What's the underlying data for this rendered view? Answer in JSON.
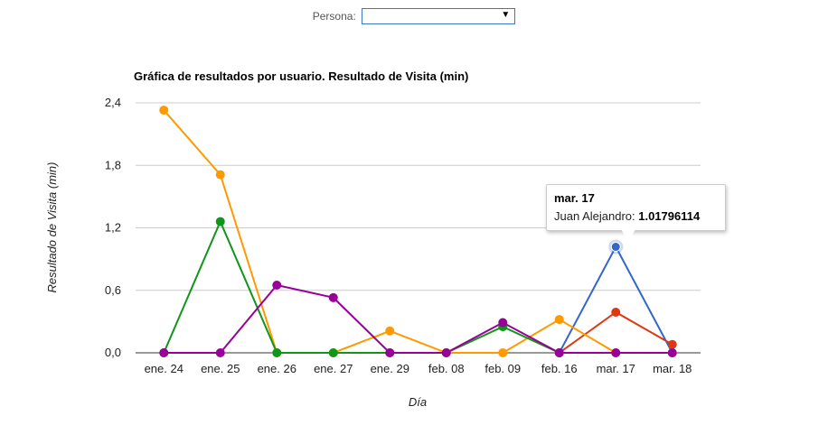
{
  "filter": {
    "label": "Persona:",
    "selected_value": "",
    "arrow_icon": "dropdown-arrow-icon"
  },
  "chart_data": {
    "type": "line",
    "title": "Gráfica de resultados por usuario. Resultado de Visita (min)",
    "xlabel": "Día",
    "ylabel": "Resultado de Visita (min)",
    "ylim": [
      0,
      2.4
    ],
    "yticks": [
      "0,0",
      "0,6",
      "1,2",
      "1,8",
      "2,4"
    ],
    "grid": true,
    "legend": "none",
    "categories": [
      "ene. 24",
      "ene. 25",
      "ene. 26",
      "ene. 27",
      "ene. 29",
      "feb. 08",
      "feb. 09",
      "feb. 16",
      "mar. 17",
      "mar. 18"
    ],
    "series": [
      {
        "color": "#3366cc",
        "values": [
          null,
          null,
          null,
          null,
          null,
          null,
          null,
          0,
          1.01796114,
          0
        ]
      },
      {
        "color": "#dc3912",
        "values": [
          null,
          null,
          null,
          null,
          null,
          null,
          null,
          0,
          0.39,
          0.08
        ]
      },
      {
        "color": "#ff9900",
        "values": [
          2.33,
          1.71,
          0,
          0,
          0.21,
          0,
          0,
          0.32,
          0,
          0
        ]
      },
      {
        "color": "#109618",
        "values": [
          0,
          1.26,
          0,
          0,
          0,
          0,
          0.25,
          0,
          null,
          null
        ]
      },
      {
        "color": "#990099",
        "values": [
          0,
          0,
          0.65,
          0.53,
          0,
          0,
          0.29,
          0,
          0,
          0
        ]
      }
    ],
    "tooltip": {
      "title": "mar. 17",
      "series_label": "Juan Alejandro:",
      "value": "1.01796114"
    }
  }
}
